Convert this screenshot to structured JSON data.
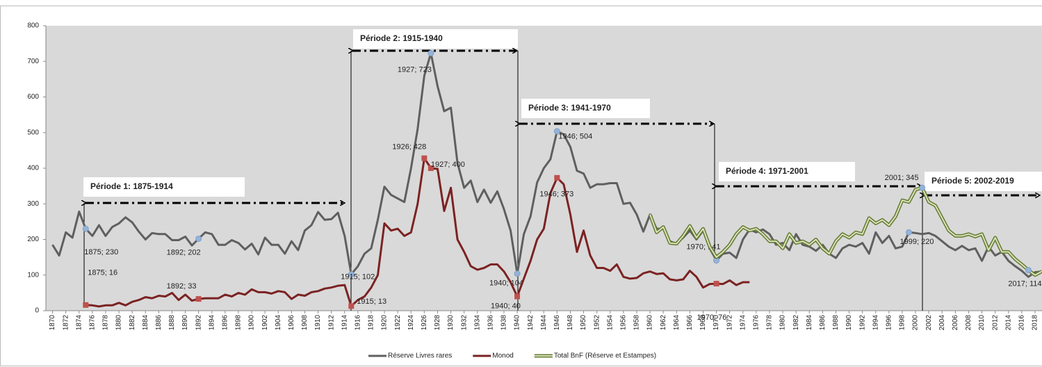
{
  "chart_data": {
    "type": "line",
    "x": [
      1870,
      1871,
      1872,
      1873,
      1874,
      1875,
      1876,
      1877,
      1878,
      1879,
      1880,
      1881,
      1882,
      1883,
      1884,
      1885,
      1886,
      1887,
      1888,
      1889,
      1890,
      1891,
      1892,
      1893,
      1894,
      1895,
      1896,
      1897,
      1898,
      1899,
      1900,
      1901,
      1902,
      1903,
      1904,
      1905,
      1906,
      1907,
      1908,
      1909,
      1910,
      1911,
      1912,
      1913,
      1914,
      1915,
      1916,
      1917,
      1918,
      1919,
      1920,
      1921,
      1922,
      1923,
      1924,
      1925,
      1926,
      1927,
      1928,
      1929,
      1930,
      1931,
      1932,
      1933,
      1934,
      1935,
      1936,
      1937,
      1938,
      1939,
      1940,
      1941,
      1942,
      1943,
      1944,
      1945,
      1946,
      1947,
      1948,
      1949,
      1950,
      1951,
      1952,
      1953,
      1954,
      1955,
      1956,
      1957,
      1958,
      1959,
      1960,
      1961,
      1962,
      1963,
      1964,
      1965,
      1966,
      1967,
      1968,
      1969,
      1970,
      1971,
      1972,
      1973,
      1974,
      1975,
      1976,
      1977,
      1978,
      1979,
      1980,
      1981,
      1982,
      1983,
      1984,
      1985,
      1986,
      1987,
      1988,
      1989,
      1990,
      1991,
      1992,
      1993,
      1994,
      1995,
      1996,
      1997,
      1998,
      1999,
      2000,
      2001,
      2002,
      2003,
      2004,
      2005,
      2006,
      2007,
      2008,
      2009,
      2010,
      2011,
      2012,
      2013,
      2014,
      2015,
      2016,
      2017,
      2018,
      2019
    ],
    "xlim": [
      1869,
      2019.5
    ],
    "xticks": [
      1870,
      1872,
      1874,
      1876,
      1878,
      1880,
      1882,
      1884,
      1886,
      1888,
      1890,
      1892,
      1894,
      1896,
      1898,
      1900,
      1902,
      1904,
      1906,
      1908,
      1910,
      1912,
      1914,
      1916,
      1918,
      1920,
      1922,
      1924,
      1926,
      1928,
      1930,
      1932,
      1934,
      1936,
      1938,
      1940,
      1942,
      1944,
      1946,
      1948,
      1950,
      1952,
      1954,
      1956,
      1958,
      1960,
      1962,
      1964,
      1966,
      1968,
      1970,
      1972,
      1974,
      1976,
      1978,
      1980,
      1982,
      1984,
      1986,
      1988,
      1990,
      1992,
      1994,
      1996,
      1998,
      2000,
      2002,
      2004,
      2006,
      2008,
      2010,
      2012,
      2014,
      2016,
      2018
    ],
    "ylim": [
      0,
      800
    ],
    "yticks": [
      0,
      100,
      200,
      300,
      400,
      500,
      600,
      700,
      800
    ],
    "grid": false,
    "legend": "bottom",
    "series": [
      {
        "name": "Réserve Livres rares",
        "color": "#5f5f5f",
        "values": [
          185,
          155,
          220,
          205,
          278,
          230,
          210,
          240,
          210,
          235,
          245,
          262,
          248,
          222,
          200,
          218,
          215,
          215,
          198,
          198,
          208,
          183,
          202,
          220,
          215,
          185,
          185,
          198,
          190,
          172,
          188,
          158,
          205,
          185,
          185,
          160,
          195,
          170,
          225,
          240,
          277,
          255,
          257,
          275,
          210,
          102,
          125,
          160,
          175,
          255,
          348,
          325,
          315,
          305,
          400,
          510,
          660,
          723,
          630,
          560,
          570,
          415,
          345,
          365,
          305,
          340,
          303,
          335,
          285,
          225,
          104,
          215,
          265,
          360,
          400,
          425,
          504,
          495,
          460,
          393,
          385,
          345,
          355,
          355,
          358,
          358,
          300,
          303,
          270,
          222,
          270,
          230,
          230,
          195,
          188,
          205,
          225,
          200,
          225,
          175,
          141,
          160,
          163,
          148,
          200,
          228,
          220,
          228,
          215,
          185,
          190,
          170,
          215,
          185,
          180,
          168,
          185,
          160,
          148,
          175,
          185,
          180,
          190,
          160,
          220,
          190,
          210,
          175,
          180,
          220,
          218,
          215,
          218,
          210,
          195,
          180,
          170,
          182,
          170,
          175,
          140,
          180,
          155,
          165,
          140,
          125,
          112,
          95,
          108,
          110
        ],
        "value_labels": [
          null,
          null,
          null,
          null,
          null,
          "1875; 230",
          null,
          null,
          null,
          null,
          null,
          null,
          null,
          null,
          null,
          null,
          null,
          null,
          null,
          null,
          null,
          null,
          "1892; 202",
          null,
          null,
          null,
          null,
          null,
          null,
          null,
          null,
          null,
          null,
          null,
          null,
          null,
          null,
          null,
          null,
          null,
          null,
          null,
          null,
          null,
          null,
          "1915; 102",
          null,
          null,
          null,
          null,
          null,
          null,
          null,
          null,
          null,
          null,
          null,
          "1927; 723",
          null,
          null,
          null,
          null,
          null,
          null,
          null,
          null,
          null,
          null,
          null,
          null,
          "1940; 104",
          null,
          null,
          null,
          null,
          null,
          "1946; 504",
          null,
          null,
          null,
          null,
          null,
          null,
          null,
          null,
          null,
          null,
          null,
          null,
          null,
          null,
          null,
          null,
          null,
          null,
          null,
          null,
          null,
          null,
          null,
          "1970; 141",
          null,
          null,
          null,
          null,
          null,
          null,
          null,
          null,
          null,
          null,
          null,
          null,
          null,
          null,
          null,
          null,
          null,
          null,
          null,
          null,
          null,
          null,
          null,
          null,
          null,
          null,
          null,
          null,
          "1999; 220",
          null,
          null,
          null,
          null,
          null,
          null,
          null,
          null,
          null,
          null,
          null,
          null,
          null,
          null,
          null,
          null,
          null,
          null,
          null,
          null
        ]
      },
      {
        "name": "Monod",
        "color": "#7b2222",
        "values": [
          null,
          null,
          null,
          null,
          null,
          16,
          15,
          12,
          15,
          15,
          22,
          15,
          25,
          30,
          38,
          35,
          42,
          40,
          50,
          30,
          45,
          28,
          33,
          35,
          35,
          35,
          45,
          40,
          50,
          45,
          60,
          52,
          52,
          48,
          55,
          52,
          33,
          45,
          42,
          52,
          55,
          62,
          65,
          70,
          72,
          13,
          30,
          40,
          65,
          100,
          245,
          225,
          230,
          210,
          220,
          300,
          428,
          400,
          398,
          280,
          345,
          200,
          165,
          125,
          115,
          120,
          130,
          130,
          110,
          80,
          40,
          90,
          140,
          200,
          230,
          330,
          373,
          355,
          270,
          165,
          225,
          155,
          120,
          120,
          112,
          130,
          95,
          90,
          92,
          105,
          110,
          103,
          105,
          88,
          85,
          88,
          112,
          95,
          65,
          75,
          76,
          75,
          85,
          72,
          80,
          80,
          null,
          null,
          null,
          null,
          null,
          null,
          null,
          null,
          null,
          null,
          null,
          null,
          null,
          null,
          null,
          null,
          null,
          null,
          null,
          null,
          null,
          null,
          null,
          null,
          null,
          null,
          null,
          null,
          null,
          null,
          null,
          null,
          null,
          null,
          null,
          null,
          null,
          null,
          null,
          null,
          null,
          null,
          null,
          null
        ],
        "value_labels": [
          null,
          null,
          null,
          null,
          null,
          "1875; 16",
          null,
          null,
          null,
          null,
          null,
          null,
          null,
          null,
          null,
          null,
          null,
          null,
          null,
          null,
          null,
          null,
          "1892; 33",
          null,
          null,
          null,
          null,
          null,
          null,
          null,
          null,
          null,
          null,
          null,
          null,
          null,
          null,
          null,
          null,
          null,
          null,
          null,
          null,
          null,
          null,
          "1915; 13",
          null,
          null,
          null,
          null,
          null,
          null,
          null,
          null,
          null,
          null,
          "1926; 428",
          "1927; 400",
          null,
          null,
          null,
          null,
          null,
          null,
          null,
          null,
          null,
          null,
          null,
          null,
          "1940; 40",
          null,
          null,
          null,
          null,
          null,
          "1946; 373",
          null,
          null,
          null,
          null,
          null,
          null,
          null,
          null,
          null,
          null,
          null,
          null,
          null,
          null,
          null,
          null,
          null,
          null,
          null,
          null,
          null,
          null,
          null,
          "1970; 76",
          null,
          null,
          null,
          null,
          null,
          null,
          null,
          null,
          null,
          null,
          null,
          null,
          null,
          null,
          null,
          null,
          null,
          null,
          null,
          null,
          null,
          null,
          null,
          null,
          null,
          null,
          null,
          null,
          null,
          null,
          null,
          null,
          null,
          null,
          null,
          null,
          null,
          null,
          null,
          null,
          null,
          null,
          null,
          null,
          null,
          null,
          null,
          null,
          null
        ]
      },
      {
        "name": "Total BnF (Réserve et Estampes)",
        "color": "#687d35",
        "values": [
          null,
          null,
          null,
          null,
          null,
          null,
          null,
          null,
          null,
          null,
          null,
          null,
          null,
          null,
          null,
          null,
          null,
          null,
          null,
          null,
          null,
          null,
          null,
          null,
          null,
          null,
          null,
          null,
          null,
          null,
          null,
          null,
          null,
          null,
          null,
          null,
          null,
          null,
          null,
          null,
          null,
          null,
          null,
          null,
          null,
          null,
          null,
          null,
          null,
          null,
          null,
          null,
          null,
          null,
          null,
          null,
          null,
          null,
          null,
          null,
          null,
          null,
          null,
          null,
          null,
          null,
          null,
          null,
          null,
          null,
          null,
          null,
          null,
          null,
          null,
          null,
          null,
          null,
          null,
          null,
          null,
          null,
          null,
          null,
          null,
          null,
          null,
          null,
          null,
          null,
          270,
          220,
          235,
          190,
          188,
          210,
          238,
          205,
          230,
          180,
          150,
          165,
          185,
          215,
          235,
          225,
          230,
          215,
          195,
          195,
          175,
          215,
          190,
          195,
          185,
          200,
          175,
          160,
          195,
          215,
          205,
          220,
          215,
          260,
          245,
          255,
          240,
          265,
          310,
          305,
          340,
          345,
          305,
          295,
          260,
          225,
          210,
          210,
          215,
          208,
          215,
          170,
          205,
          165,
          165,
          145,
          130,
          114,
          100,
          110
        ],
        "value_labels": [
          null,
          null,
          null,
          null,
          null,
          null,
          null,
          null,
          null,
          null,
          null,
          null,
          null,
          null,
          null,
          null,
          null,
          null,
          null,
          null,
          null,
          null,
          null,
          null,
          null,
          null,
          null,
          null,
          null,
          null,
          null,
          null,
          null,
          null,
          null,
          null,
          null,
          null,
          null,
          null,
          null,
          null,
          null,
          null,
          null,
          null,
          null,
          null,
          null,
          null,
          null,
          null,
          null,
          null,
          null,
          null,
          null,
          null,
          null,
          null,
          null,
          null,
          null,
          null,
          null,
          null,
          null,
          null,
          null,
          null,
          null,
          null,
          null,
          null,
          null,
          null,
          null,
          null,
          null,
          null,
          null,
          null,
          null,
          null,
          null,
          null,
          null,
          null,
          null,
          null,
          null,
          null,
          null,
          null,
          null,
          null,
          null,
          null,
          null,
          null,
          null,
          null,
          null,
          null,
          null,
          null,
          null,
          null,
          null,
          null,
          null,
          null,
          null,
          null,
          null,
          null,
          null,
          null,
          null,
          null,
          null,
          null,
          null,
          null,
          null,
          null,
          null,
          null,
          null,
          null,
          null,
          "2001; 345",
          null,
          null,
          null,
          null,
          null,
          null,
          null,
          null,
          null,
          null,
          null,
          null,
          null,
          null,
          null,
          "2017; 114",
          null,
          null
        ]
      }
    ],
    "annotations": [
      "Période 1: 1875-1914",
      "Période 2: 1915-1940",
      "Période 3: 1941-1970",
      "Période 4: 1971-2001",
      "Période 5: 2002-2019"
    ]
  }
}
